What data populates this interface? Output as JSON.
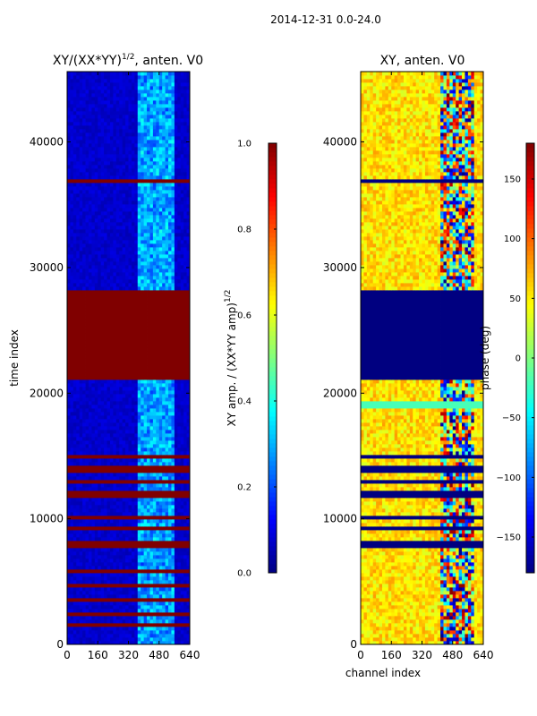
{
  "figure": {
    "suptitle": "2014-12-31 0.0-24.0"
  },
  "chart_data": [
    {
      "type": "heatmap",
      "title": "XY/(XX*YY)",
      "title_superscript": "1/2",
      "title_suffix": ", anten. V0",
      "xlabel": "",
      "ylabel": "time index",
      "xlim": [
        0,
        640
      ],
      "ylim": [
        0,
        45600
      ],
      "x_ticks": [
        0,
        160,
        320,
        480,
        640
      ],
      "y_ticks": [
        0,
        10000,
        20000,
        30000,
        40000
      ],
      "x_tick_labels": [
        "0",
        "160",
        "320",
        "480",
        "640"
      ],
      "y_tick_labels": [
        "0",
        "10000",
        "20000",
        "30000",
        "40000"
      ],
      "colormap": "jet",
      "base_value": 0.05,
      "bands": [
        {
          "y0": 21000,
          "y1": 28300,
          "value": 1.0
        },
        {
          "y0": 36900,
          "y1": 37150,
          "value": 1.0
        },
        {
          "y0": 14700,
          "y1": 15000,
          "value": 1.0
        },
        {
          "y0": 13800,
          "y1": 14200,
          "value": 1.0
        },
        {
          "y0": 12700,
          "y1": 13200,
          "value": 1.0
        },
        {
          "y0": 11800,
          "y1": 12300,
          "value": 1.0
        },
        {
          "y0": 10000,
          "y1": 10400,
          "value": 1.0
        },
        {
          "y0": 9000,
          "y1": 9500,
          "value": 1.0
        },
        {
          "y0": 7800,
          "y1": 8300,
          "value": 1.0
        },
        {
          "y0": 5600,
          "y1": 6100,
          "value": 1.0
        },
        {
          "y0": 4500,
          "y1": 4900,
          "value": 1.0
        },
        {
          "y0": 3300,
          "y1": 3800,
          "value": 1.0
        },
        {
          "y0": 2200,
          "y1": 2700,
          "value": 1.0
        },
        {
          "y0": 1300,
          "y1": 1600,
          "value": 1.0
        }
      ],
      "colorbar": {
        "label": "XY amp. / (XX*YY amp)",
        "label_superscript": "1/2",
        "min": 0.0,
        "max": 1.0,
        "ticks": [
          0.0,
          0.2,
          0.4,
          0.6,
          0.8,
          1.0
        ],
        "tick_labels": [
          "0.0",
          "0.2",
          "0.4",
          "0.6",
          "0.8",
          "1.0"
        ]
      }
    },
    {
      "type": "heatmap",
      "title": "XY, anten. V0",
      "xlabel": "channel index",
      "ylabel": "",
      "xlim": [
        0,
        640
      ],
      "ylim": [
        0,
        45600
      ],
      "x_ticks": [
        0,
        160,
        320,
        480,
        640
      ],
      "y_ticks": [
        0,
        10000,
        20000,
        30000,
        40000
      ],
      "x_tick_labels": [
        "0",
        "160",
        "320",
        "480",
        "640"
      ],
      "y_tick_labels": [
        "0",
        "10000",
        "20000",
        "30000",
        "40000"
      ],
      "colormap": "jet",
      "base_value": 55,
      "bands": [
        {
          "y0": 21000,
          "y1": 28300,
          "value": -180
        },
        {
          "y0": 18700,
          "y1": 19500,
          "value": -20
        },
        {
          "y0": 36900,
          "y1": 37150,
          "value": -180
        },
        {
          "y0": 14700,
          "y1": 15000,
          "value": -180
        },
        {
          "y0": 13800,
          "y1": 14200,
          "value": -180
        },
        {
          "y0": 12700,
          "y1": 13200,
          "value": -180
        },
        {
          "y0": 11800,
          "y1": 12300,
          "value": -180
        },
        {
          "y0": 10000,
          "y1": 10400,
          "value": -180
        },
        {
          "y0": 9000,
          "y1": 9500,
          "value": -180
        },
        {
          "y0": 7800,
          "y1": 8300,
          "value": -180
        }
      ],
      "colorbar": {
        "label": "phase (deg)",
        "min": -180,
        "max": 180,
        "ticks": [
          -150,
          -100,
          -50,
          0,
          50,
          100,
          150
        ],
        "tick_labels": [
          "−150",
          "−100",
          "−50",
          "0",
          "50",
          "100",
          "150"
        ]
      }
    }
  ]
}
